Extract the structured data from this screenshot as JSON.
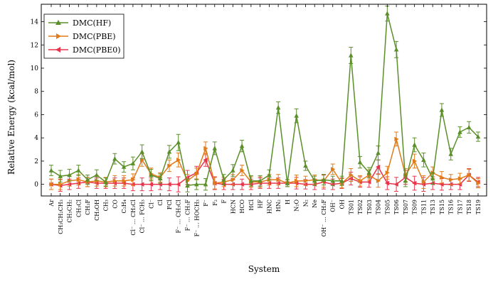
{
  "chart_data": {
    "type": "line",
    "title": "",
    "xlabel": "System",
    "ylabel": "Relative Energy (kcal/mol)",
    "ylim": [
      -1,
      15.5
    ],
    "yticks": [
      0,
      2,
      4,
      6,
      8,
      10,
      12,
      14
    ],
    "grid": false,
    "legend_position": "top-left",
    "categories": [
      "Ar",
      "CH₃CH₂CH₃",
      "CH₃CH₂",
      "CH₃Cl",
      "CH₃F",
      "CH₃OH",
      "CH₃",
      "CO",
      "C₂H₄",
      "Cl⁻ ... CH₃Cl",
      "Cl⁻ ... FCH₃",
      "Cl⁻",
      "Cl",
      "FCl",
      "F⁻ ... CH₃Cl",
      "F⁻ ... CH₃F",
      "F⁻ ... HOCH₃",
      "F⁻",
      "F₂",
      "F",
      "HCN",
      "HCO",
      "HCl",
      "HF",
      "HNC",
      "HN₂",
      "H",
      "N₂O",
      "N₂",
      "Ne",
      "OH⁻ ... CH₃F",
      "OH⁻",
      "OH",
      "TS01",
      "TS02",
      "TS03",
      "TS04",
      "TS05",
      "TS06",
      "TS07",
      "TS09",
      "TS11",
      "TS13",
      "TS15",
      "TS16",
      "TS17",
      "TS18",
      "TS19"
    ],
    "series": [
      {
        "name": "DMC(HF)",
        "color": "#5a8f29",
        "marker": "triangle-up",
        "values": [
          1.2,
          0.7,
          0.8,
          1.2,
          0.4,
          0.8,
          0.2,
          2.2,
          1.5,
          1.8,
          2.8,
          0.8,
          0.5,
          2.8,
          3.6,
          -0.1,
          0.0,
          0.0,
          3.1,
          0.4,
          1.2,
          3.3,
          0.3,
          0.3,
          0.8,
          6.6,
          0.1,
          5.9,
          1.6,
          0.3,
          0.4,
          0.3,
          0.3,
          11.1,
          1.9,
          1.0,
          2.7,
          14.7,
          11.6,
          0.3,
          3.4,
          2.1,
          0.5,
          6.4,
          2.6,
          4.5,
          4.9,
          4.1
        ],
        "errors": [
          0.45,
          0.5,
          0.5,
          0.45,
          0.4,
          0.45,
          0.35,
          0.45,
          0.45,
          0.55,
          0.6,
          0.5,
          0.4,
          0.55,
          0.7,
          0.55,
          0.45,
          0.5,
          0.55,
          0.45,
          0.5,
          0.5,
          0.45,
          0.45,
          0.45,
          0.5,
          0.3,
          0.6,
          0.4,
          0.4,
          0.45,
          0.4,
          0.4,
          0.7,
          0.5,
          0.45,
          0.6,
          0.65,
          0.7,
          0.5,
          0.6,
          0.6,
          0.5,
          0.55,
          0.5,
          0.45,
          0.5,
          0.4
        ]
      },
      {
        "name": "DMC(PBE)",
        "color": "#e07b1a",
        "marker": "triangle-right",
        "values": [
          0.0,
          0.0,
          0.3,
          0.4,
          0.2,
          0.3,
          0.2,
          0.3,
          0.3,
          0.4,
          2.1,
          0.9,
          0.6,
          1.6,
          2.1,
          0.3,
          0.9,
          3.1,
          0.1,
          0.2,
          0.4,
          1.2,
          0.2,
          0.2,
          0.4,
          0.4,
          0.1,
          0.3,
          0.3,
          0.4,
          0.3,
          1.3,
          0.1,
          0.8,
          0.3,
          0.8,
          0.3,
          1.0,
          3.9,
          0.8,
          2.0,
          0.2,
          1.0,
          0.6,
          0.4,
          0.5,
          0.8,
          0.1
        ],
        "errors": [
          0.45,
          0.45,
          0.45,
          0.45,
          0.4,
          0.45,
          0.4,
          0.45,
          0.45,
          0.5,
          0.55,
          0.5,
          0.4,
          0.5,
          0.6,
          0.55,
          0.5,
          0.55,
          0.5,
          0.4,
          0.45,
          0.45,
          0.45,
          0.45,
          0.45,
          0.45,
          0.3,
          0.5,
          0.4,
          0.4,
          0.55,
          0.45,
          0.4,
          0.55,
          0.45,
          0.45,
          0.55,
          0.55,
          0.6,
          0.55,
          0.6,
          0.55,
          0.5,
          0.5,
          0.45,
          0.45,
          0.5,
          0.4
        ]
      },
      {
        "name": "DMC(PBE0)",
        "color": "#e8334a",
        "marker": "triangle-left",
        "values": [
          0.0,
          -0.1,
          0.0,
          0.1,
          0.2,
          0.1,
          0.1,
          0.1,
          0.1,
          0.0,
          0.0,
          0.0,
          0.0,
          0.0,
          0.0,
          0.6,
          1.0,
          2.1,
          0.1,
          0.0,
          0.0,
          0.0,
          0.0,
          0.1,
          0.1,
          0.1,
          0.1,
          0.1,
          0.0,
          0.0,
          0.2,
          0.0,
          0.1,
          0.5,
          0.2,
          0.2,
          1.5,
          0.1,
          0.0,
          0.6,
          0.1,
          0.0,
          0.1,
          0.0,
          0.0,
          0.0,
          0.8,
          0.2
        ],
        "errors": [
          0.45,
          0.5,
          0.45,
          0.45,
          0.4,
          0.45,
          0.45,
          0.45,
          0.45,
          0.55,
          0.55,
          0.55,
          0.45,
          0.55,
          0.65,
          0.6,
          0.55,
          0.55,
          0.55,
          0.45,
          0.45,
          0.45,
          0.45,
          0.45,
          0.45,
          0.45,
          0.3,
          0.5,
          0.4,
          0.45,
          0.6,
          0.45,
          0.45,
          0.55,
          0.45,
          0.45,
          0.6,
          0.55,
          0.6,
          0.6,
          0.6,
          0.6,
          0.55,
          0.5,
          0.45,
          0.45,
          0.55,
          0.4
        ]
      }
    ]
  }
}
